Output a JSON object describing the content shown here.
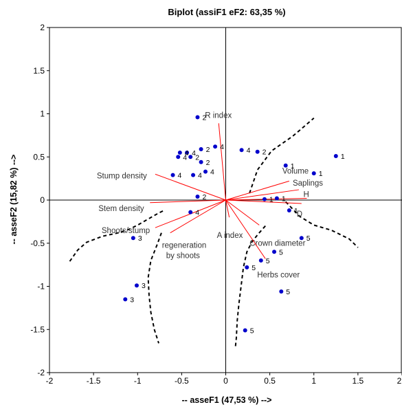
{
  "chart_data": {
    "type": "scatter",
    "title": "Biplot (assiF1 eF2: 63,35 %)",
    "xlabel": "-- asseF1 (47,53 %) -->",
    "ylabel": "-- asseF2 (15,82 %) -->",
    "xlim": [
      -2,
      2
    ],
    "ylim": [
      -2,
      2
    ],
    "xticks": [
      -2,
      -1.5,
      -1,
      -0.5,
      0,
      0.5,
      1,
      1.5,
      2
    ],
    "xtick_labels": [
      "-2",
      "-1.5",
      "-1",
      "-0.5",
      "0",
      "0.5",
      "1",
      "1.5",
      "2"
    ],
    "yticks": [
      -2,
      -1.5,
      -1,
      -0.5,
      0,
      0.5,
      1,
      1.5,
      2
    ],
    "ytick_labels": [
      "-2",
      "-1.5",
      "-1",
      "-0.5",
      "0",
      "0.5",
      "1",
      "1.5",
      "2"
    ],
    "grid": false,
    "colors": {
      "points": "#0000cc",
      "vectors": "#ff0000",
      "frame": "#000000",
      "boundaries": "#000000"
    },
    "observations": [
      {
        "x": 1.25,
        "y": 0.51,
        "label": "1"
      },
      {
        "x": 0.68,
        "y": 0.4,
        "label": "1"
      },
      {
        "x": 1.0,
        "y": 0.31,
        "label": "1"
      },
      {
        "x": 0.58,
        "y": 0.02,
        "label": "1"
      },
      {
        "x": 0.72,
        "y": -0.12,
        "label": "1"
      },
      {
        "x": 0.44,
        "y": 0.01,
        "label": "1"
      },
      {
        "x": -0.32,
        "y": 0.96,
        "label": "2"
      },
      {
        "x": -0.28,
        "y": 0.59,
        "label": "2"
      },
      {
        "x": 0.36,
        "y": 0.56,
        "label": "2"
      },
      {
        "x": -0.28,
        "y": 0.44,
        "label": "2"
      },
      {
        "x": -0.32,
        "y": 0.04,
        "label": "2"
      },
      {
        "x": -0.12,
        "y": 0.62,
        "label": "4"
      },
      {
        "x": -0.44,
        "y": 0.55,
        "label": "4"
      },
      {
        "x": -0.52,
        "y": 0.55,
        "label": "4"
      },
      {
        "x": -0.54,
        "y": 0.5,
        "label": "4"
      },
      {
        "x": -0.4,
        "y": 0.5,
        "label": "2"
      },
      {
        "x": 0.18,
        "y": 0.58,
        "label": "4"
      },
      {
        "x": -0.23,
        "y": 0.33,
        "label": "4"
      },
      {
        "x": -0.37,
        "y": 0.29,
        "label": "4"
      },
      {
        "x": -0.6,
        "y": 0.29,
        "label": "4"
      },
      {
        "x": -0.4,
        "y": -0.14,
        "label": "4"
      },
      {
        "x": -1.05,
        "y": -0.44,
        "label": "3"
      },
      {
        "x": -1.01,
        "y": -0.99,
        "label": "3"
      },
      {
        "x": -1.14,
        "y": -1.15,
        "label": "3"
      },
      {
        "x": 0.55,
        "y": -0.6,
        "label": "5"
      },
      {
        "x": 0.4,
        "y": -0.7,
        "label": "5"
      },
      {
        "x": 0.24,
        "y": -0.78,
        "label": "5"
      },
      {
        "x": 0.86,
        "y": -0.44,
        "label": "5"
      },
      {
        "x": 0.63,
        "y": -1.06,
        "label": "5"
      },
      {
        "x": 0.22,
        "y": -1.51,
        "label": "5"
      }
    ],
    "variables": [
      {
        "name": "R index",
        "x": -0.08,
        "y": 0.89,
        "label_lines": [
          "R index"
        ]
      },
      {
        "name": "Stump density",
        "x": -0.8,
        "y": 0.3,
        "label_lines": [
          "Stump density"
        ]
      },
      {
        "name": "Stem density",
        "x": -0.86,
        "y": -0.03,
        "label_lines": [
          "Stem density"
        ]
      },
      {
        "name": "Shoots/stump",
        "x": -0.8,
        "y": -0.32,
        "label_lines": [
          "Shoots/stump"
        ]
      },
      {
        "name": "regeneration by shoots",
        "x": -0.63,
        "y": -0.38,
        "label_lines": [
          "regeneration",
          "by shoots"
        ]
      },
      {
        "name": "A index",
        "x": 0.04,
        "y": -0.2,
        "label_lines": [
          "A index"
        ]
      },
      {
        "name": "Volume",
        "x": 0.72,
        "y": 0.22,
        "label_lines": [
          "Volume"
        ]
      },
      {
        "name": "Saplings",
        "x": 0.83,
        "y": 0.12,
        "label_lines": [
          "Saplings"
        ]
      },
      {
        "name": "H",
        "x": 0.92,
        "y": 0.02,
        "label_lines": [
          "H"
        ]
      },
      {
        "name": "D",
        "x": 0.86,
        "y": -0.04,
        "label_lines": [
          "D"
        ]
      },
      {
        "name": "Crown diameter",
        "x": 0.38,
        "y": -0.29,
        "label_lines": [
          "Crown diameter"
        ]
      },
      {
        "name": "Herbs cover",
        "x": 0.45,
        "y": -0.68,
        "label_lines": [
          "Herbs cover"
        ]
      }
    ],
    "group_boundaries": [
      [
        [
          0.27,
          0.08
        ],
        [
          0.36,
          0.35
        ],
        [
          0.52,
          0.57
        ],
        [
          0.76,
          0.74
        ],
        [
          1.0,
          0.95
        ]
      ],
      [
        [
          0.68,
          -0.02
        ],
        [
          0.84,
          -0.19
        ],
        [
          1.0,
          -0.29
        ],
        [
          1.2,
          -0.35
        ],
        [
          1.4,
          -0.45
        ],
        [
          1.5,
          -0.55
        ]
      ],
      [
        [
          -1.77,
          -0.71
        ],
        [
          -1.68,
          -0.58
        ],
        [
          -1.58,
          -0.49
        ],
        [
          -1.4,
          -0.42
        ],
        [
          -1.22,
          -0.38
        ],
        [
          -1.1,
          -0.34
        ],
        [
          -1.0,
          -0.29
        ],
        [
          -0.88,
          -0.22
        ],
        [
          -0.76,
          -0.15
        ],
        [
          -0.7,
          -0.12
        ]
      ],
      [
        [
          -0.73,
          -0.38
        ],
        [
          -0.78,
          -0.52
        ],
        [
          -0.85,
          -0.7
        ],
        [
          -0.88,
          -0.9
        ],
        [
          -0.87,
          -1.1
        ],
        [
          -0.85,
          -1.3
        ],
        [
          -0.81,
          -1.5
        ],
        [
          -0.76,
          -1.66
        ]
      ],
      [
        [
          0.45,
          -0.3
        ],
        [
          0.38,
          -0.38
        ],
        [
          0.3,
          -0.48
        ],
        [
          0.24,
          -0.6
        ],
        [
          0.2,
          -0.78
        ],
        [
          0.18,
          -0.95
        ],
        [
          0.15,
          -1.2
        ],
        [
          0.13,
          -1.4
        ],
        [
          0.12,
          -1.6
        ],
        [
          0.11,
          -1.7
        ]
      ]
    ]
  }
}
